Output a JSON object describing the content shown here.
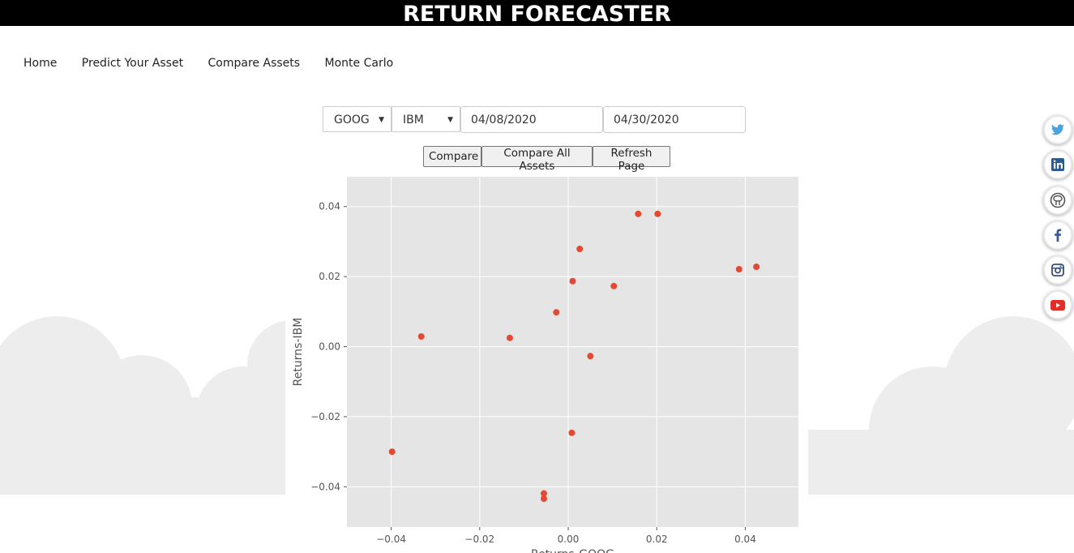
{
  "header": {
    "title": "RETURN FORECASTER"
  },
  "nav": {
    "items": [
      "Home",
      "Predict Your Asset",
      "Compare Assets",
      "Monte Carlo"
    ]
  },
  "controls": {
    "asset1": "GOOG",
    "asset2": "IBM",
    "start_date": "04/08/2020",
    "end_date": "04/30/2020",
    "buttons": [
      "Compare",
      "Compare All Assets",
      "Refresh Page"
    ]
  },
  "social": [
    "twitter-icon",
    "linkedin-icon",
    "github-icon",
    "facebook-icon",
    "instagram-icon",
    "youtube-icon"
  ],
  "colors": {
    "header_bg": "#000000",
    "plot_bg": "#e5e5e5",
    "point": "#e24a33",
    "cloud": "#ededed"
  },
  "chart_data": {
    "type": "scatter",
    "xlabel": "Returns-GOOG",
    "ylabel": "Returns-IBM",
    "xlim": [
      -0.05,
      0.052
    ],
    "ylim": [
      -0.0515,
      0.0485
    ],
    "xticks": [
      "−0.04",
      "−0.02",
      "0.00",
      "0.02",
      "0.04"
    ],
    "xtick_values": [
      -0.04,
      -0.02,
      0.0,
      0.02,
      0.04
    ],
    "yticks": [
      "0.04",
      "0.02",
      "0.00",
      "−0.02",
      "−0.04"
    ],
    "ytick_values": [
      0.04,
      0.02,
      0.0,
      -0.02,
      -0.04
    ],
    "grid": true,
    "points": [
      {
        "x": -0.0398,
        "y": -0.03
      },
      {
        "x": -0.0332,
        "y": 0.0029
      },
      {
        "x": -0.0132,
        "y": 0.0025
      },
      {
        "x": -0.0027,
        "y": 0.0098
      },
      {
        "x": 0.001,
        "y": 0.0187
      },
      {
        "x": 0.0026,
        "y": 0.0279
      },
      {
        "x": 0.005,
        "y": -0.0027
      },
      {
        "x": 0.0103,
        "y": 0.0173
      },
      {
        "x": 0.0158,
        "y": 0.0379
      },
      {
        "x": 0.0202,
        "y": 0.0379
      },
      {
        "x": 0.0386,
        "y": 0.0221
      },
      {
        "x": 0.0425,
        "y": 0.0228
      },
      {
        "x": 0.0008,
        "y": -0.0246
      },
      {
        "x": -0.0055,
        "y": -0.0419
      },
      {
        "x": -0.0055,
        "y": -0.0434
      }
    ]
  }
}
